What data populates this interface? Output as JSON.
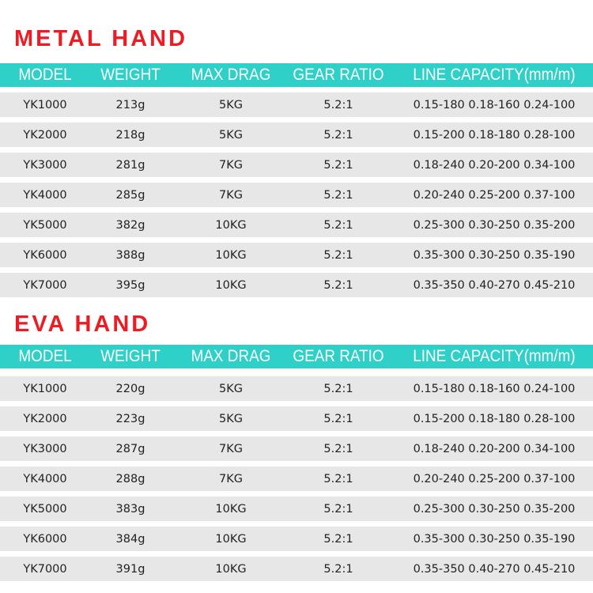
{
  "sections": [
    {
      "title": "METAL HAND",
      "headers": [
        "MODEL",
        "WEIGHT",
        "MAX DRAG",
        "GEAR RATIO",
        "LINE CAPACITY(mm/m)"
      ],
      "rows": [
        [
          "YK1000",
          "213g",
          "5KG",
          "5.2:1",
          "0.15-180 0.18-160 0.24-100"
        ],
        [
          "YK2000",
          "218g",
          "5KG",
          "5.2:1",
          "0.15-200 0.18-180 0.28-100"
        ],
        [
          "YK3000",
          "281g",
          "7KG",
          "5.2:1",
          "0.18-240 0.20-200 0.34-100"
        ],
        [
          "YK4000",
          "285g",
          "7KG",
          "5.2:1",
          "0.20-240 0.25-200 0.37-100"
        ],
        [
          "YK5000",
          "382g",
          "10KG",
          "5.2:1",
          "0.25-300 0.30-250 0.35-200"
        ],
        [
          "YK6000",
          "388g",
          "10KG",
          "5.2:1",
          "0.35-300 0.30-250 0.35-190"
        ],
        [
          "YK7000",
          "395g",
          "10KG",
          "5.2:1",
          "0.35-350 0.40-270 0.45-210"
        ]
      ]
    },
    {
      "title": "EVA HAND",
      "headers": [
        "MODEL",
        "WEIGHT",
        "MAX DRAG",
        "GEAR RATIO",
        "LINE CAPACITY(mm/m)"
      ],
      "rows": [
        [
          "YK1000",
          "220g",
          "5KG",
          "5.2:1",
          "0.15-180 0.18-160 0.24-100"
        ],
        [
          "YK2000",
          "223g",
          "5KG",
          "5.2:1",
          "0.15-200 0.18-180 0.28-100"
        ],
        [
          "YK3000",
          "287g",
          "7KG",
          "5.2:1",
          "0.18-240 0.20-200 0.34-100"
        ],
        [
          "YK4000",
          "288g",
          "7KG",
          "5.2:1",
          "0.20-240 0.25-200 0.37-100"
        ],
        [
          "YK5000",
          "383g",
          "10KG",
          "5.2:1",
          "0.25-300 0.30-250 0.35-200"
        ],
        [
          "YK6000",
          "384g",
          "10KG",
          "5.2:1",
          "0.35-300 0.30-250 0.35-190"
        ],
        [
          "YK7000",
          "391g",
          "10KG",
          "5.2:1",
          "0.35-350 0.40-270 0.45-210"
        ]
      ]
    }
  ],
  "colors": {
    "title": "#ec1c24",
    "header_bg": "#2fd0c8",
    "row_bg": "#e7e7e7"
  }
}
